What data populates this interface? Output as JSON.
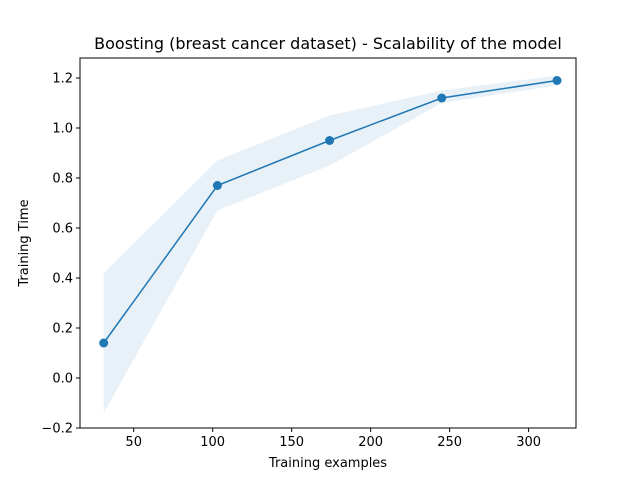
{
  "chart_data": {
    "type": "line",
    "title": "Boosting (breast cancer dataset) - Scalability of the model",
    "xlabel": "Training examples",
    "ylabel": "Training Time",
    "xlim": [
      16,
      330
    ],
    "ylim": [
      -0.2,
      1.28
    ],
    "xticks": [
      50,
      100,
      150,
      200,
      250,
      300
    ],
    "yticks": [
      -0.2,
      0.0,
      0.2,
      0.4,
      0.6,
      0.8,
      1.0,
      1.2
    ],
    "ytick_labels": [
      "−0.2",
      "0.0",
      "0.2",
      "0.4",
      "0.6",
      "0.8",
      "1.0",
      "1.2"
    ],
    "grid": false,
    "series": [
      {
        "x": [
          31,
          103,
          174,
          245,
          318
        ],
        "y": [
          0.14,
          0.77,
          0.95,
          1.12,
          1.19
        ],
        "band_lower": [
          -0.14,
          0.67,
          0.85,
          1.1,
          1.17
        ],
        "band_upper": [
          0.42,
          0.87,
          1.05,
          1.15,
          1.21
        ],
        "color": "#1f77b4",
        "band_color": "#1f77b4",
        "band_opacity": 0.1
      }
    ]
  }
}
